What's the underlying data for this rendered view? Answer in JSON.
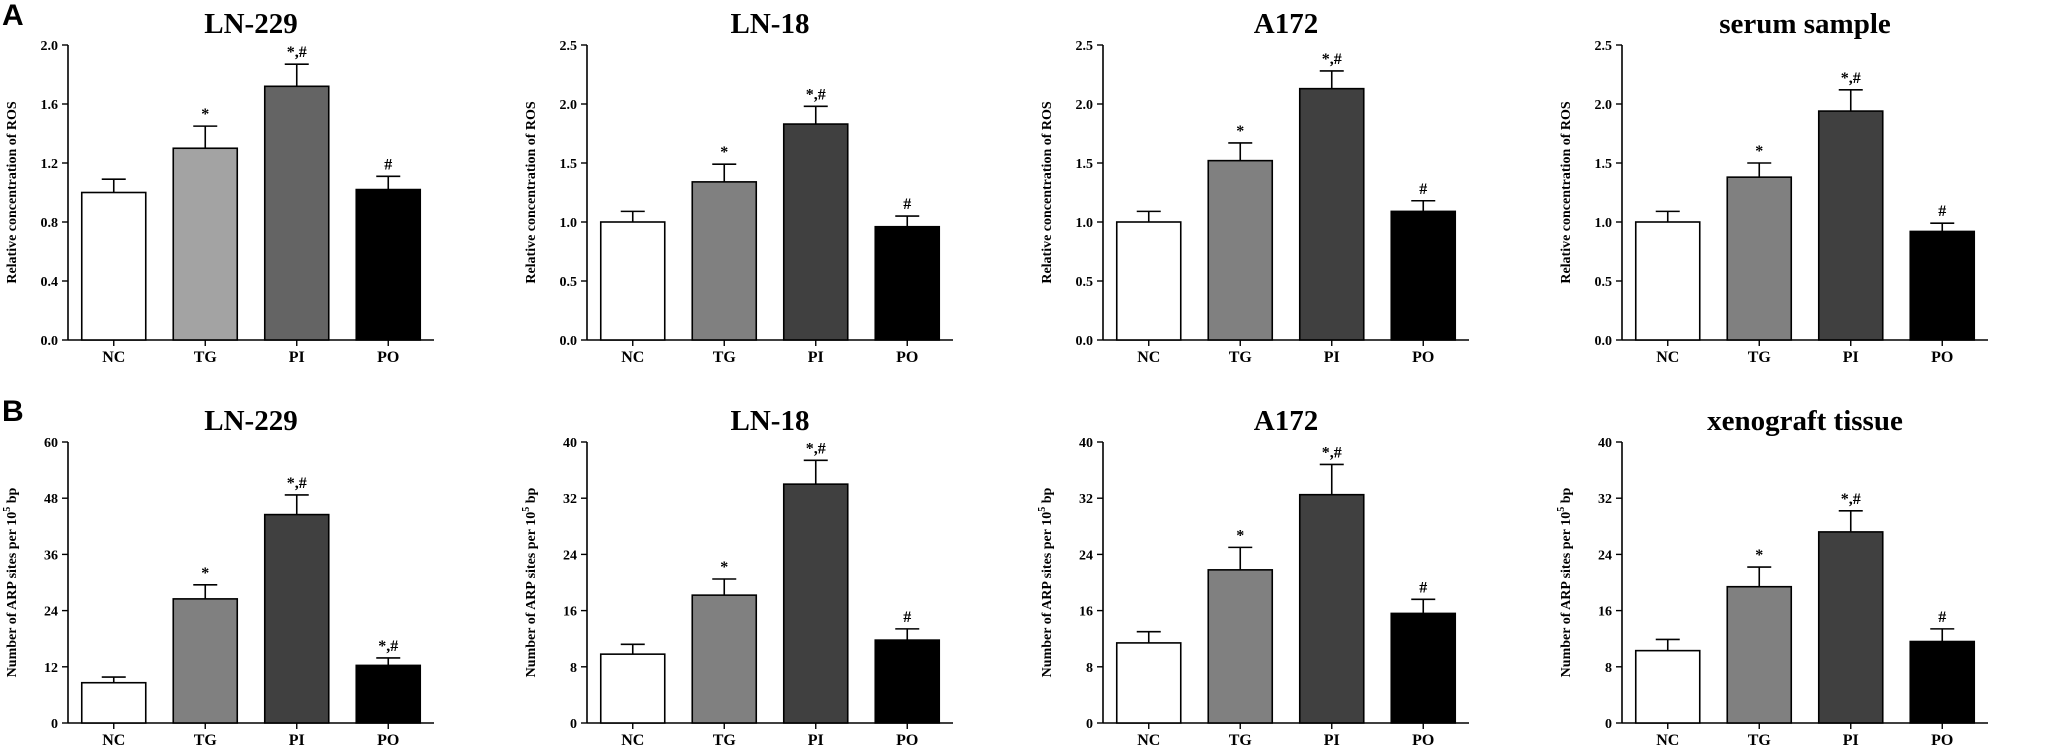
{
  "panels": [
    {
      "letter": "A"
    },
    {
      "letter": "B"
    }
  ],
  "chart_data": [
    {
      "type": "bar",
      "panel": "A",
      "title": "LN-229",
      "ylabel": "Relative concentration of ROS",
      "categories": [
        "NC",
        "TG",
        "PI",
        "PO"
      ],
      "values": [
        1.0,
        1.3,
        1.72,
        1.02
      ],
      "errors": [
        0.09,
        0.15,
        0.15,
        0.09
      ],
      "ylim": [
        0,
        2.0
      ],
      "yticks": [
        "0.0",
        "0.4",
        "0.8",
        "1.2",
        "1.6",
        "2.0"
      ],
      "significance": [
        "",
        "*",
        "*,#",
        "#"
      ],
      "colors": [
        "#ffffff",
        "#a3a3a3",
        "#646464",
        "#000000"
      ]
    },
    {
      "type": "bar",
      "panel": "A",
      "title": "LN-18",
      "ylabel": "Relative concentration of ROS",
      "categories": [
        "NC",
        "TG",
        "PI",
        "PO"
      ],
      "values": [
        1.0,
        1.34,
        1.83,
        0.96
      ],
      "errors": [
        0.09,
        0.15,
        0.15,
        0.09
      ],
      "ylim": [
        0,
        2.5
      ],
      "yticks": [
        "0.0",
        "0.5",
        "1.0",
        "1.5",
        "2.0",
        "2.5"
      ],
      "significance": [
        "",
        "*",
        "*,#",
        "#"
      ],
      "colors": [
        "#ffffff",
        "#808080",
        "#404040",
        "#000000"
      ]
    },
    {
      "type": "bar",
      "panel": "A",
      "title": "A172",
      "ylabel": "Relative concentration of ROS",
      "categories": [
        "NC",
        "TG",
        "PI",
        "PO"
      ],
      "values": [
        1.0,
        1.52,
        2.13,
        1.09
      ],
      "errors": [
        0.09,
        0.15,
        0.15,
        0.09
      ],
      "ylim": [
        0,
        2.5
      ],
      "yticks": [
        "0.0",
        "0.5",
        "1.0",
        "1.5",
        "2.0",
        "2.5"
      ],
      "significance": [
        "",
        "*",
        "*,#",
        "#"
      ],
      "colors": [
        "#ffffff",
        "#808080",
        "#404040",
        "#000000"
      ]
    },
    {
      "type": "bar",
      "panel": "A",
      "title": "serum sample",
      "ylabel": "Relative concentration of ROS",
      "categories": [
        "NC",
        "TG",
        "PI",
        "PO"
      ],
      "values": [
        1.0,
        1.38,
        1.94,
        0.92
      ],
      "errors": [
        0.09,
        0.12,
        0.18,
        0.07
      ],
      "ylim": [
        0,
        2.5
      ],
      "yticks": [
        "0.0",
        "0.5",
        "1.0",
        "1.5",
        "2.0",
        "2.5"
      ],
      "significance": [
        "",
        "*",
        "*,#",
        "#"
      ],
      "colors": [
        "#ffffff",
        "#808080",
        "#404040",
        "#000000"
      ]
    },
    {
      "type": "bar",
      "panel": "B",
      "title": "LN-229",
      "ylabel": "Number of ARP sites per 10^5 bp",
      "categories": [
        "NC",
        "TG",
        "PI",
        "PO"
      ],
      "values": [
        8.6,
        26.5,
        44.5,
        12.3
      ],
      "errors": [
        1.2,
        3.0,
        4.2,
        1.6
      ],
      "ylim": [
        0,
        60
      ],
      "yticks": [
        "0",
        "12",
        "24",
        "36",
        "48",
        "60"
      ],
      "significance": [
        "",
        "*",
        "*,#",
        "*,#"
      ],
      "colors": [
        "#ffffff",
        "#808080",
        "#404040",
        "#000000"
      ]
    },
    {
      "type": "bar",
      "panel": "B",
      "title": "LN-18",
      "ylabel": "Number of ARP sites per 10^5 bp",
      "categories": [
        "NC",
        "TG",
        "PI",
        "PO"
      ],
      "values": [
        9.8,
        18.2,
        34.0,
        11.8
      ],
      "errors": [
        1.4,
        2.3,
        3.4,
        1.6
      ],
      "ylim": [
        0,
        40
      ],
      "yticks": [
        "0",
        "8",
        "16",
        "24",
        "32",
        "40"
      ],
      "significance": [
        "",
        "*",
        "*,#",
        "#"
      ],
      "colors": [
        "#ffffff",
        "#808080",
        "#404040",
        "#000000"
      ]
    },
    {
      "type": "bar",
      "panel": "B",
      "title": "A172",
      "ylabel": "Number of ARP sites per 10^5 bp",
      "categories": [
        "NC",
        "TG",
        "PI",
        "PO"
      ],
      "values": [
        11.4,
        21.8,
        32.5,
        15.6
      ],
      "errors": [
        1.6,
        3.2,
        4.3,
        2.0
      ],
      "ylim": [
        0,
        40
      ],
      "yticks": [
        "0",
        "8",
        "16",
        "24",
        "32",
        "40"
      ],
      "significance": [
        "",
        "*",
        "*,#",
        "#"
      ],
      "colors": [
        "#ffffff",
        "#808080",
        "#404040",
        "#000000"
      ]
    },
    {
      "type": "bar",
      "panel": "B",
      "title": "xenograft tissue",
      "ylabel": "Number of ARP sites per 10^5 bp",
      "categories": [
        "NC",
        "TG",
        "PI",
        "PO"
      ],
      "values": [
        10.3,
        19.4,
        27.2,
        11.6
      ],
      "errors": [
        1.6,
        2.8,
        3.0,
        1.8
      ],
      "ylim": [
        0,
        40
      ],
      "yticks": [
        "0",
        "8",
        "16",
        "24",
        "32",
        "40"
      ],
      "significance": [
        "",
        "*",
        "*,#",
        "#"
      ],
      "colors": [
        "#ffffff",
        "#808080",
        "#404040",
        "#000000"
      ]
    }
  ]
}
